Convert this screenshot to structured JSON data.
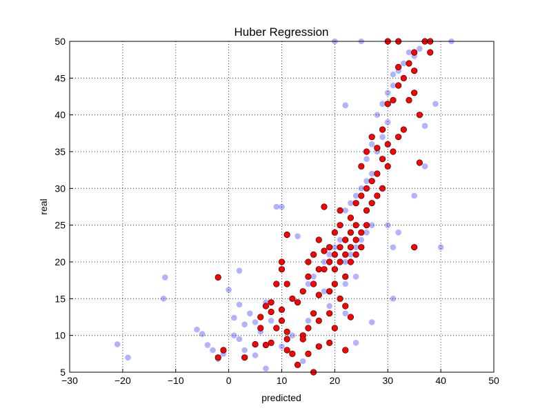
{
  "chart_data": {
    "type": "scatter",
    "title": "Huber Regression",
    "x_label": "predicted",
    "y_label": "real",
    "xlim": [
      -30,
      50
    ],
    "ylim": [
      5,
      50
    ],
    "xticks": [
      {
        "value": -30,
        "label": "−30"
      },
      {
        "value": -20,
        "label": "−20"
      },
      {
        "value": -10,
        "label": "−10"
      },
      0,
      10,
      20,
      30,
      40,
      50
    ],
    "yticks": [
      5,
      10,
      15,
      20,
      25,
      30,
      35,
      40,
      45,
      50
    ],
    "grid": true,
    "series": [
      {
        "color": "#0000ff",
        "alpha": 0.3,
        "x": [
          -21,
          -19,
          -12,
          -12.3,
          -6,
          -5,
          -4,
          -3,
          -2,
          -1,
          0,
          1,
          1,
          2,
          2,
          2,
          3,
          3,
          4,
          5,
          5,
          6,
          7,
          8,
          9,
          10,
          13,
          15,
          16,
          17,
          18,
          19,
          20,
          21,
          22,
          23,
          24,
          25,
          26,
          27,
          22,
          23,
          24,
          25,
          26,
          27,
          26,
          27,
          28,
          29,
          29,
          30,
          28,
          29,
          30,
          31,
          31,
          32,
          33,
          35,
          36,
          20,
          25,
          30,
          38,
          42,
          40,
          35,
          37,
          39,
          37,
          31,
          27,
          24,
          22,
          19,
          18,
          15,
          12,
          10,
          14,
          7,
          34,
          22,
          24,
          22,
          30,
          31,
          32
        ],
        "values": [
          8.8,
          7,
          17.9,
          15,
          10.8,
          10.2,
          8.7,
          8,
          6.8,
          7.5,
          16.2,
          12.4,
          10,
          9.5,
          14.2,
          18.8,
          11.5,
          8,
          13,
          11.8,
          7.3,
          10.5,
          14.5,
          12,
          27.5,
          27.5,
          23.5,
          17,
          18,
          19,
          20,
          21,
          22,
          23,
          20,
          21,
          22,
          23,
          24,
          25,
          27,
          28,
          29,
          30,
          31,
          32,
          34,
          36,
          35,
          37,
          38,
          39,
          40,
          41.5,
          43,
          44,
          45.5,
          46,
          47,
          48,
          49,
          50,
          50,
          50,
          50,
          50,
          22,
          29,
          33,
          41.5,
          38.5,
          15,
          11.8,
          9,
          13,
          14,
          16,
          12,
          10,
          8.5,
          6.5,
          5.5,
          48.5,
          41.3,
          18,
          17,
          25,
          22,
          24
        ]
      },
      {
        "color": "#ff0000",
        "alpha": 1,
        "x": [
          -2,
          -1,
          -2,
          3,
          5,
          6,
          6,
          7,
          7,
          8,
          8,
          9,
          9,
          10,
          10,
          10,
          10,
          11,
          11,
          11,
          11,
          12,
          12,
          13,
          13,
          14,
          14,
          14,
          15,
          15,
          15,
          15,
          16,
          16,
          16,
          16,
          17,
          17,
          17,
          17,
          17,
          18,
          18,
          18,
          19,
          19,
          19,
          19,
          19,
          20,
          20,
          20,
          20,
          20,
          21,
          21,
          21,
          21,
          21,
          22,
          22,
          22,
          22,
          22,
          23,
          23,
          23,
          23,
          23,
          24,
          24,
          24,
          24,
          25,
          25,
          25,
          25,
          26,
          26,
          26,
          26,
          27,
          27,
          27,
          28,
          28,
          28,
          29,
          29,
          29,
          30,
          30,
          30,
          31,
          31,
          32,
          32,
          32,
          33,
          33,
          34,
          34,
          35,
          35,
          35,
          36,
          36,
          37,
          38,
          38,
          30,
          32,
          35,
          11,
          8
        ],
        "values": [
          17.9,
          8,
          7,
          7,
          8.8,
          11,
          12.5,
          14,
          8.7,
          9,
          13.2,
          17,
          11,
          20,
          19,
          13.5,
          12,
          8,
          10.5,
          17,
          23.7,
          15,
          7.5,
          14.5,
          6,
          16,
          10,
          9.5,
          18,
          20,
          11,
          7.5,
          21,
          17,
          13,
          5,
          19,
          15.5,
          12,
          8.5,
          23,
          21.5,
          19,
          27.5,
          22,
          20,
          16,
          13,
          9,
          21,
          19,
          24,
          17,
          11,
          22,
          20,
          25,
          15,
          27,
          23,
          21,
          18,
          14,
          8,
          24,
          22,
          26,
          20,
          12.5,
          23,
          25,
          21,
          28,
          24,
          22,
          29,
          33,
          25,
          27,
          30,
          35,
          28,
          31,
          37,
          29,
          32,
          35.5,
          30,
          34,
          38,
          33,
          36,
          41.5,
          35,
          42,
          37,
          44,
          46.5,
          38,
          45,
          42,
          47,
          43,
          46,
          48.5,
          33.5,
          40,
          50,
          48.5,
          50,
          50,
          50,
          22,
          9.5,
          14.5
        ]
      }
    ]
  }
}
